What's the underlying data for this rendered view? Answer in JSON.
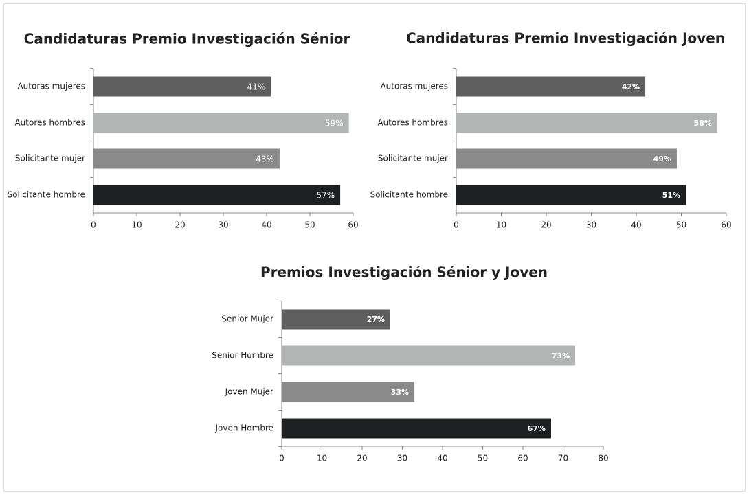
{
  "chart_data": [
    {
      "type": "bar",
      "orientation": "horizontal",
      "title": "Candidaturas Premio Investigación Sénior",
      "categories": [
        "Autoras mujeres",
        "Autores hombres",
        "Solicitante mujer",
        "Solicitante hombre"
      ],
      "values": [
        41,
        59,
        43,
        57
      ],
      "value_labels": [
        "41%",
        "59%",
        "43%",
        "57%"
      ],
      "colors": [
        "#5f5f5f",
        "#b3b5b5",
        "#8a8a8a",
        "#1f2021"
      ],
      "xlim": [
        0,
        60
      ],
      "xticks": [
        0,
        10,
        20,
        30,
        40,
        50,
        60
      ]
    },
    {
      "type": "bar",
      "orientation": "horizontal",
      "title": "Candidaturas Premio Investigación Joven",
      "categories": [
        "Autoras mujeres",
        "Autores hombres",
        "Solicitante mujer",
        "Solicitante hombre"
      ],
      "values": [
        42,
        58,
        49,
        51
      ],
      "value_labels": [
        "42%",
        "58%",
        "49%",
        "51%"
      ],
      "colors": [
        "#5f5f5f",
        "#b3b5b5",
        "#8a8a8a",
        "#1f2021"
      ],
      "xlim": [
        0,
        60
      ],
      "xticks": [
        0,
        10,
        20,
        30,
        40,
        50,
        60
      ]
    },
    {
      "type": "bar",
      "orientation": "horizontal",
      "title": "Premios Investigación Sénior y Joven",
      "categories": [
        "Senior Mujer",
        "Senior Hombre",
        "Joven Mujer",
        "Joven Hombre"
      ],
      "values": [
        27,
        73,
        33,
        67
      ],
      "value_labels": [
        "27%",
        "73%",
        "33%",
        "67%"
      ],
      "colors": [
        "#5f5f5f",
        "#b3b5b5",
        "#8a8a8a",
        "#1f2021"
      ],
      "xlim": [
        0,
        80
      ],
      "xticks": [
        0,
        10,
        20,
        30,
        40,
        50,
        60,
        70,
        80
      ]
    }
  ]
}
